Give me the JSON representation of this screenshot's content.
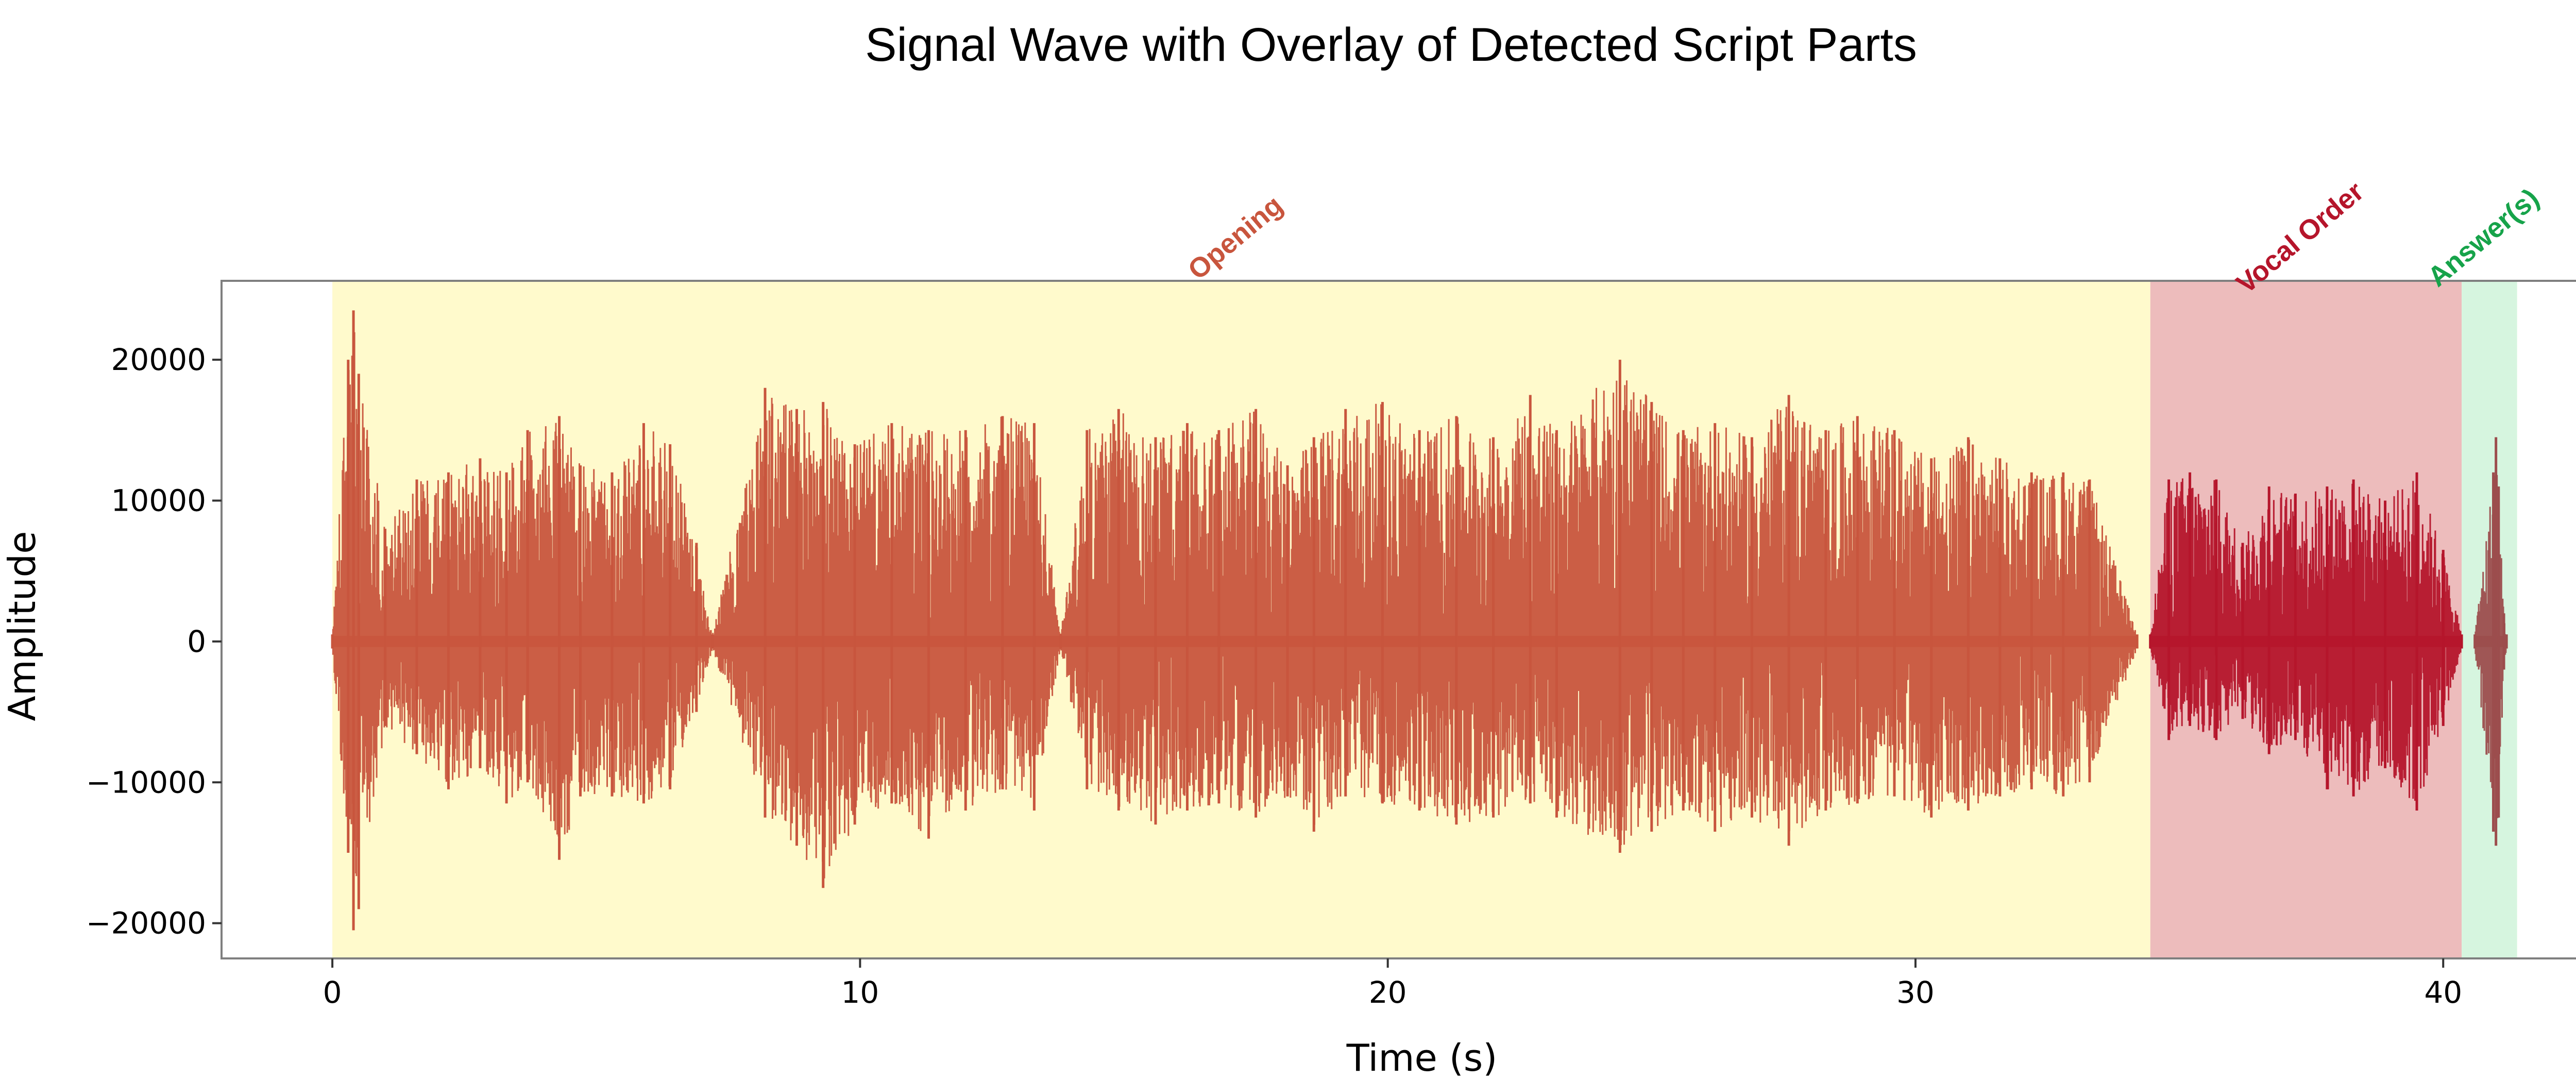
{
  "chart_data": {
    "type": "area",
    "title": "Signal Wave with Overlay of Detected Script Parts",
    "xlabel": "Time (s)",
    "ylabel": "Amplitude",
    "xlim": [
      -2.1,
      43.2
    ],
    "ylim": [
      -22500,
      25600
    ],
    "x_ticks": [
      0,
      10,
      20,
      30,
      40
    ],
    "x_tick_labels": [
      "0",
      "10",
      "20",
      "30",
      "40"
    ],
    "y_ticks": [
      20000,
      10000,
      0,
      -10000,
      -20000
    ],
    "y_tick_labels": [
      "20000",
      "10000",
      "0",
      "−10000",
      "−20000"
    ],
    "grid": false,
    "colors": {
      "Opening": "#c8553d",
      "Vocal Order": "#b5152b",
      "Answer(s)": "#9c4d4d",
      "label_Answer(s)": "#16a34a",
      "opening_fill": "#fffacc",
      "vocal_order_fill": "#edbcbc",
      "answer_fill": "#d6f5df"
    },
    "segments": [
      {
        "name": "Opening",
        "start": 0.0,
        "end": 34.45
      },
      {
        "name": "Vocal Order",
        "start": 34.45,
        "end": 40.35
      },
      {
        "name": "Answer(s)",
        "start": 40.35,
        "end": 41.4
      }
    ],
    "series": [
      {
        "name": "Opening",
        "x": [
          0.0,
          0.3,
          0.4,
          0.5,
          1.0,
          1.6,
          2.2,
          2.8,
          3.3,
          3.7,
          4.3,
          4.7,
          5.3,
          5.9,
          6.4,
          6.9,
          7.2,
          8.2,
          8.8,
          9.3,
          9.9,
          10.6,
          11.3,
          12.0,
          12.7,
          13.3,
          13.8,
          14.3,
          14.9,
          15.6,
          16.2,
          16.8,
          17.5,
          18.1,
          18.6,
          19.2,
          19.9,
          20.6,
          21.3,
          22.0,
          22.7,
          23.2,
          24.4,
          25.0,
          25.6,
          26.2,
          26.9,
          27.6,
          28.3,
          28.9,
          29.6,
          30.3,
          31.0,
          31.6,
          32.2,
          32.8,
          33.3,
          34.2
        ],
        "upper": [
          500,
          20000,
          23500,
          19000,
          8000,
          11500,
          12000,
          13000,
          12000,
          15000,
          16000,
          12500,
          12000,
          15500,
          14000,
          7000,
          500,
          18000,
          16500,
          17000,
          14000,
          15500,
          15000,
          15000,
          16000,
          15500,
          500,
          15000,
          16500,
          14500,
          15500,
          15000,
          16500,
          12500,
          14500,
          16500,
          17000,
          15000,
          16000,
          14500,
          17500,
          15000,
          20000,
          17000,
          15000,
          15500,
          14500,
          17500,
          15000,
          16000,
          15000,
          13000,
          14500,
          13000,
          12000,
          12000,
          11500,
          500
        ],
        "lower": [
          -500,
          -15000,
          -20500,
          -19000,
          -6000,
          -8000,
          -10500,
          -9000,
          -11500,
          -10000,
          -15500,
          -11000,
          -11000,
          -11500,
          -10500,
          -5000,
          -500,
          -12500,
          -14500,
          -17500,
          -13000,
          -11500,
          -14000,
          -12000,
          -10500,
          -12000,
          -500,
          -10500,
          -12000,
          -13000,
          -12000,
          -11500,
          -12500,
          -11000,
          -13500,
          -11000,
          -11500,
          -12000,
          -13000,
          -12500,
          -11500,
          -12500,
          -15000,
          -13500,
          -12000,
          -13500,
          -12500,
          -14500,
          -12000,
          -11500,
          -11000,
          -12500,
          -12000,
          -11000,
          -10500,
          -11000,
          -10000,
          -500
        ]
      },
      {
        "name": "Vocal Order",
        "x": [
          34.45,
          34.8,
          35.2,
          35.7,
          36.2,
          36.7,
          37.2,
          37.8,
          38.3,
          38.9,
          39.5,
          40.0,
          40.35
        ],
        "upper": [
          500,
          11500,
          12000,
          11500,
          7000,
          11000,
          10500,
          11000,
          11500,
          10000,
          12000,
          6500,
          500
        ],
        "lower": [
          -500,
          -7000,
          -6000,
          -7000,
          -5500,
          -8000,
          -7000,
          -10500,
          -11000,
          -9000,
          -12000,
          -6000,
          -500
        ]
      },
      {
        "name": "Answer(s)",
        "x": [
          40.6,
          40.95,
          41.0,
          41.05,
          41.15,
          41.2
        ],
        "upper": [
          500,
          12000,
          14500,
          11000,
          2000,
          500
        ],
        "lower": [
          -500,
          -13500,
          -14500,
          -12500,
          -2000,
          -500
        ]
      }
    ]
  }
}
